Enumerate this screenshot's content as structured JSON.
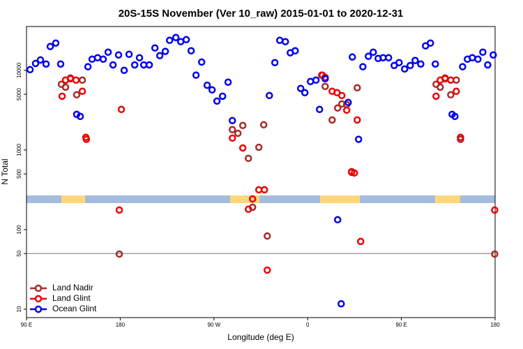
{
  "chart_data": {
    "type": "scatter",
    "title": "20S-15S November (Ver 10_raw)   2015-01-01 to 2020-12-31",
    "x_label": "Longitude (deg E)",
    "y_label": "N Total",
    "xlim": [
      90,
      540
    ],
    "xticks": [
      {
        "value": 90,
        "label": "90 E"
      },
      {
        "value": 180,
        "label": "180"
      },
      {
        "value": 270,
        "label": "90 W"
      },
      {
        "value": 360,
        "label": "0"
      },
      {
        "value": 450,
        "label": "90 E"
      },
      {
        "value": 540,
        "label": "180"
      }
    ],
    "ylim": [
      7.85,
      35500
    ],
    "log_y": true,
    "yticks": [
      10,
      50,
      100,
      500,
      1000,
      5000,
      10000
    ],
    "hlines": [
      50
    ],
    "legend": "bottom-left",
    "series": [
      {
        "name": "Land Nadir",
        "color": "#a52a2a",
        "x": [
          123.5,
          127.5,
          132.2,
          138.2,
          143.6,
          179.1,
          287.7,
          293,
          297.7,
          303.1,
          313.1,
          317.8,
          321.2,
          307.1,
          373.4,
          376.8,
          383.5,
          388.8,
          392.8,
          397.5,
          402.2,
          407.6,
          483.3,
          487.3,
          492,
          497.4,
          502.7,
          506.8,
          539.6
        ],
        "values": [
          6680,
          6150,
          8010,
          4930,
          7540,
          49.3,
          1800,
          1620,
          2030,
          785,
          1080,
          2070,
          83,
          191,
          8700,
          6280,
          2380,
          3360,
          3790,
          3720,
          535,
          6040,
          6680,
          6150,
          8010,
          4930,
          7540,
          1360,
          49.3
        ]
      },
      {
        "name": "Land Glint",
        "color": "#ee0000",
        "x": [
          124.2,
          127.5,
          132.2,
          137.6,
          143.6,
          147,
          147.5,
          181.1,
          179.1,
          287.7,
          297.7,
          303.1,
          307.1,
          313.1,
          318.5,
          321.2,
          374.1,
          376.8,
          383.5,
          388.2,
          392.8,
          397.5,
          402.2,
          404.9,
          407.6,
          410.9,
          483.3,
          487.3,
          492,
          497.4,
          502.7,
          506.8,
          539.6
        ],
        "values": [
          4730,
          7540,
          7850,
          7540,
          5460,
          1440,
          1360,
          3230,
          176,
          1410,
          1060,
          180,
          243,
          316,
          316,
          31,
          8700,
          8170,
          5460,
          5240,
          4830,
          3160,
          524,
          514,
          2380,
          71,
          4730,
          7540,
          7850,
          7540,
          5460,
          1440,
          176
        ]
      },
      {
        "name": "Ocean Glint",
        "color": "#0000ee",
        "x": [
          93.4,
          98.7,
          103.4,
          108.8,
          112.8,
          118.1,
          122.8,
          138.2,
          141.6,
          149,
          153,
          158.3,
          163.7,
          168.4,
          173.1,
          178.4,
          183.8,
          188.5,
          193.9,
          198.5,
          202.6,
          207.9,
          213.3,
          218,
          223.3,
          227.4,
          233.4,
          238.1,
          243.4,
          248.1,
          252.8,
          258.2,
          263.5,
          268.2,
          272.9,
          278.3,
          283.6,
          287.7,
          323.2,
          328.5,
          333.2,
          338.6,
          343.3,
          348,
          353.3,
          357.3,
          362.7,
          368,
          371.4,
          376.8,
          388.8,
          392.2,
          398.9,
          402.9,
          408.9,
          413,
          418.3,
          423,
          427.7,
          432.4,
          437.7,
          443.1,
          447.8,
          453.1,
          458.5,
          463.2,
          468.6,
          473.2,
          477.9,
          482.6,
          498.7,
          501.4,
          508.8,
          513.4,
          518.1,
          523.5,
          528.2,
          532.9,
          538.2
        ],
        "values": [
          10200,
          12200,
          13500,
          12000,
          19900,
          22000,
          12000,
          2800,
          2640,
          11100,
          13800,
          14400,
          13800,
          16900,
          11700,
          15600,
          10000,
          15900,
          11700,
          14400,
          11700,
          11700,
          19100,
          15300,
          17300,
          23800,
          25800,
          22900,
          24300,
          17600,
          8700,
          12700,
          6500,
          5680,
          4110,
          4730,
          7100,
          2340,
          4830,
          12500,
          23800,
          22900,
          16600,
          17600,
          5920,
          5240,
          7240,
          7540,
          3230,
          7850,
          133,
          11.7,
          3950,
          14700,
          1360,
          11100,
          15000,
          16900,
          14100,
          14400,
          14400,
          11500,
          12500,
          10400,
          11500,
          13300,
          12000,
          20300,
          22000,
          12000,
          2800,
          2640,
          11100,
          13800,
          14400,
          13800,
          16900,
          11700,
          15600
        ]
      }
    ]
  }
}
